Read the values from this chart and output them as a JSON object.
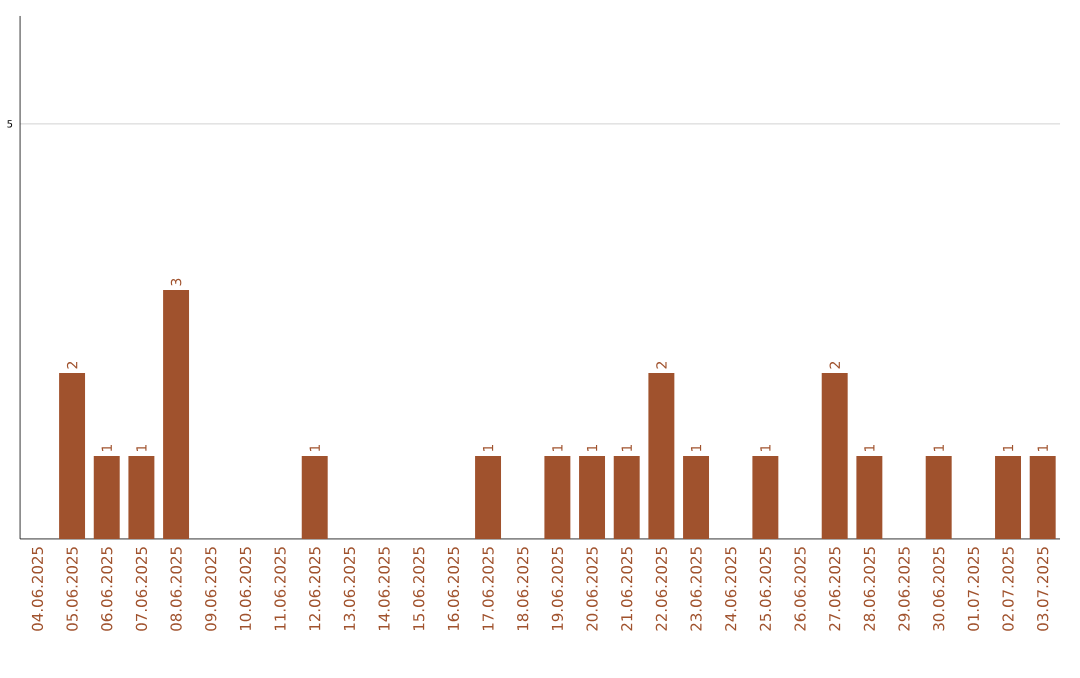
{
  "chart_data": {
    "type": "bar",
    "categories": [
      "04.06.2025",
      "05.06.2025",
      "06.06.2025",
      "07.06.2025",
      "08.06.2025",
      "09.06.2025",
      "10.06.2025",
      "11.06.2025",
      "12.06.2025",
      "13.06.2025",
      "14.06.2025",
      "15.06.2025",
      "16.06.2025",
      "17.06.2025",
      "18.06.2025",
      "19.06.2025",
      "20.06.2025",
      "21.06.2025",
      "22.06.2025",
      "23.06.2025",
      "24.06.2025",
      "25.06.2025",
      "26.06.2025",
      "27.06.2025",
      "28.06.2025",
      "29.06.2025",
      "30.06.2025",
      "01.07.2025",
      "02.07.2025",
      "03.07.2025"
    ],
    "values": [
      0,
      2,
      1,
      1,
      3,
      0,
      0,
      0,
      1,
      0,
      0,
      0,
      0,
      1,
      0,
      1,
      1,
      1,
      2,
      1,
      0,
      1,
      0,
      2,
      1,
      0,
      1,
      0,
      1,
      1
    ],
    "value_labels": [
      null,
      "2",
      "1",
      "1",
      "3",
      null,
      null,
      null,
      "1",
      null,
      null,
      null,
      null,
      "1",
      null,
      "1",
      "1",
      "1",
      "2",
      "1",
      null,
      "1",
      null,
      "2",
      "1",
      null,
      "1",
      null,
      "1",
      "1"
    ],
    "color": "#a0522d",
    "ylim": [
      0,
      6.3
    ],
    "yticks": [
      5
    ],
    "grid": "y"
  }
}
